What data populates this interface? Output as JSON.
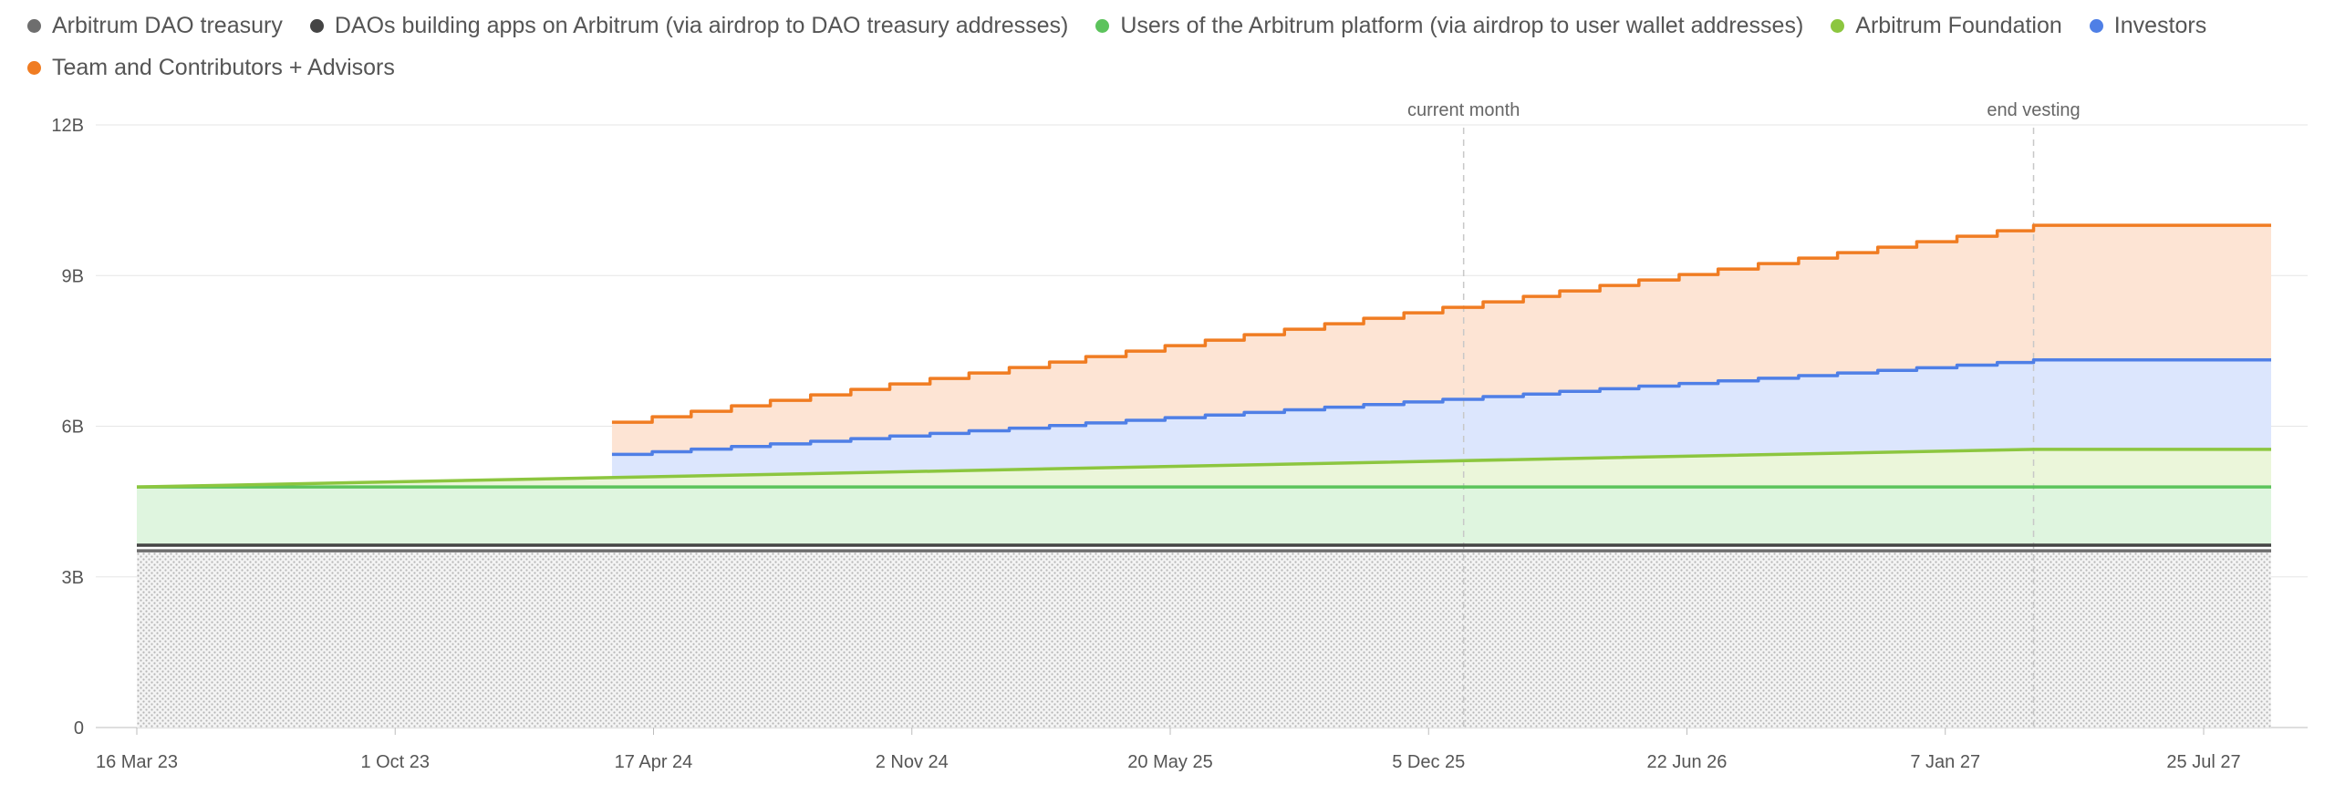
{
  "chart_data": {
    "type": "area",
    "stacked": true,
    "ylim": [
      0,
      12000000000
    ],
    "y_ticks": [
      {
        "value": 0,
        "label": "0"
      },
      {
        "value": 3000000000,
        "label": "3B"
      },
      {
        "value": 6000000000,
        "label": "6B"
      },
      {
        "value": 9000000000,
        "label": "9B"
      },
      {
        "value": 12000000000,
        "label": "12B"
      }
    ],
    "xlim": [
      "2023-03-16",
      "2027-09-15"
    ],
    "x_ticks": [
      {
        "date": "2023-03-16",
        "label": "16 Mar 23"
      },
      {
        "date": "2023-10-01",
        "label": "1 Oct 23"
      },
      {
        "date": "2024-04-17",
        "label": "17 Apr 24"
      },
      {
        "date": "2024-11-02",
        "label": "2 Nov 24"
      },
      {
        "date": "2025-05-20",
        "label": "20 May 25"
      },
      {
        "date": "2025-12-05",
        "label": "5 Dec 25"
      },
      {
        "date": "2026-06-22",
        "label": "22 Jun 26"
      },
      {
        "date": "2027-01-07",
        "label": "7 Jan 27"
      },
      {
        "date": "2027-07-25",
        "label": "25 Jul 27"
      }
    ],
    "grid": true,
    "legend_position": "top-left",
    "annotations": [
      {
        "date": "2026-01-01",
        "label": "current month"
      },
      {
        "date": "2027-03-16",
        "label": "end vesting"
      }
    ],
    "series": [
      {
        "name": "Arbitrum DAO treasury",
        "color": "#6e6e6e",
        "pattern": "dots",
        "points": [
          [
            "2023-03-16",
            3520000000
          ],
          [
            "2027-09-15",
            3520000000
          ]
        ]
      },
      {
        "name": "DAOs building apps on Arbitrum (via airdrop to DAO treasury addresses)",
        "color": "#444444",
        "points": [
          [
            "2023-03-16",
            3630000000
          ],
          [
            "2027-09-15",
            3630000000
          ]
        ]
      },
      {
        "name": "Users of the Arbitrum platform (via airdrop to user wallet addresses)",
        "color": "#5cc35c",
        "fill": "#dff5df",
        "points": [
          [
            "2023-03-16",
            4790000000
          ],
          [
            "2027-09-15",
            4790000000
          ]
        ]
      },
      {
        "name": "Arbitrum Foundation",
        "color": "#8cc63f",
        "fill": "#ebf6da",
        "points": [
          [
            "2023-03-16",
            4790000000
          ],
          [
            "2027-03-16",
            5540000000
          ],
          [
            "2027-09-15",
            5540000000
          ]
        ]
      },
      {
        "name": "Investors",
        "color": "#4f7fe6",
        "fill": "#dce6fd",
        "start": "2024-03-16",
        "end_vesting": "2027-03-16",
        "start_total": 5440000000,
        "end_total": 7320000000,
        "final": "2027-09-15"
      },
      {
        "name": "Team and Contributors + Advisors",
        "color": "#f07c22",
        "fill": "#fde4d4",
        "start": "2024-03-16",
        "end_vesting": "2027-03-16",
        "start_total": 6080000000,
        "end_total": 10000000000,
        "final": "2027-09-15"
      }
    ]
  }
}
